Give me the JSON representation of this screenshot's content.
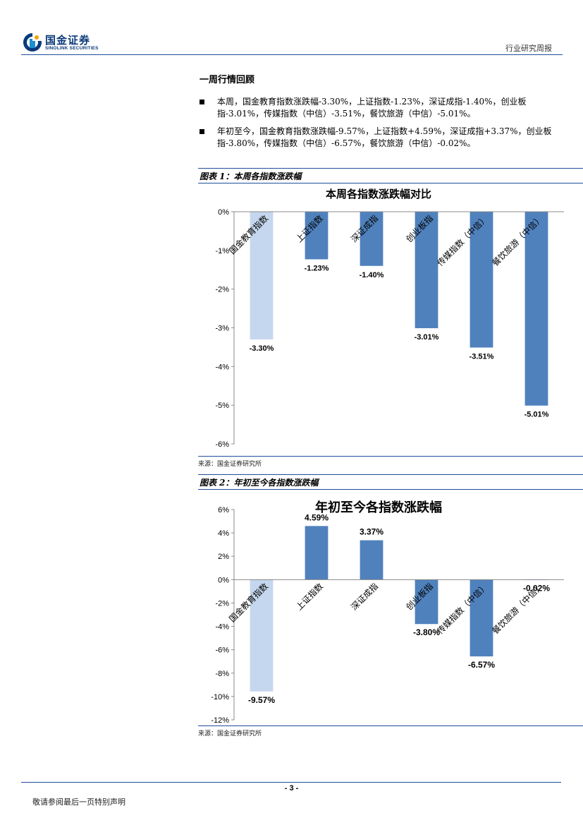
{
  "header": {
    "logo_cn": "国金证券",
    "logo_en": "SINOLINK SECURITIES",
    "report_type": "行业研究周报"
  },
  "section": {
    "title": "一周行情回顾",
    "bullets": [
      "本周，国金教育指数涨跌幅-3.30%，上证指数-1.23%，深证成指-1.40%，创业板指-3.01%，传媒指数（中信）-3.51%，餐饮旅游（中信）-5.01%。",
      "年初至今，国金教育指数涨跌幅-9.57%，上证指数+4.59%，深证成指+3.37%，创业板指-3.80%，传媒指数（中信）-6.57%，餐饮旅游（中信）-0.02%。"
    ]
  },
  "figure1": {
    "caption": "图表 1：本周各指数涨跌幅",
    "source": "来源：国金证券研究所"
  },
  "figure2": {
    "caption": "图表 2：年初至今各指数涨跌幅",
    "source": "来源：国金证券研究所"
  },
  "chart_data": [
    {
      "type": "bar",
      "title": "本周各指数涨跌幅对比",
      "categories": [
        "国金教育指数",
        "上证指数",
        "深证成指",
        "创业板指",
        "传媒指数（中信）",
        "餐饮旅游（中信）"
      ],
      "values": [
        -3.3,
        -1.23,
        -1.4,
        -3.01,
        -3.51,
        -5.01
      ],
      "data_labels": [
        "-3.30%",
        "-1.23%",
        "-1.40%",
        "-3.01%",
        "-3.51%",
        "-5.01%"
      ],
      "yticks": [
        "0%",
        "-1%",
        "-2%",
        "-3%",
        "-4%",
        "-5%",
        "-6%"
      ],
      "ylim": [
        -6,
        0
      ],
      "colors": [
        "#c5d7ee",
        "#4f81bd",
        "#4f81bd",
        "#4f81bd",
        "#4f81bd",
        "#4f81bd"
      ],
      "grid": false,
      "legend": "none"
    },
    {
      "type": "bar",
      "title": "年初至今各指数涨跌幅",
      "categories": [
        "国金教育指数",
        "上证指数",
        "深证成指",
        "创业板指",
        "传媒指数（中信）",
        "餐饮旅游（中信）"
      ],
      "values": [
        -9.57,
        4.59,
        3.37,
        -3.8,
        -6.57,
        -0.02
      ],
      "data_labels": [
        "-9.57%",
        "4.59%",
        "3.37%",
        "-3.80%",
        "-6.57%",
        "-0.02%"
      ],
      "yticks": [
        "6%",
        "4%",
        "2%",
        "0%",
        "-2%",
        "-4%",
        "-6%",
        "-8%",
        "-10%",
        "-12%"
      ],
      "ylim": [
        -12,
        6
      ],
      "colors": [
        "#c5d7ee",
        "#4f81bd",
        "#4f81bd",
        "#4f81bd",
        "#4f81bd",
        "#4f81bd"
      ],
      "grid": false,
      "legend": "none"
    }
  ],
  "footer": {
    "page_number": "- 3 -",
    "disclaimer": "敬请参阅最后一页特别声明"
  }
}
